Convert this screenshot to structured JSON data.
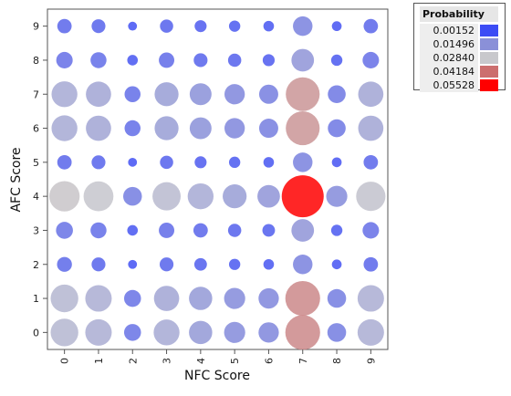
{
  "chart_data": {
    "type": "scatter",
    "xlabel": "NFC Score",
    "ylabel": "AFC Score",
    "x_ticks": [
      "0",
      "1",
      "2",
      "3",
      "4",
      "5",
      "6",
      "7",
      "8",
      "9"
    ],
    "y_ticks": [
      "0",
      "1",
      "2",
      "3",
      "4",
      "5",
      "6",
      "7",
      "8",
      "9"
    ],
    "xlim": [
      -0.5,
      9.5
    ],
    "ylim": [
      -0.5,
      9.5
    ],
    "grid": false,
    "legend_position": "top-right",
    "legend": {
      "title": "Probability",
      "entries": [
        {
          "label": "0.00152",
          "color": "#3c4cf5"
        },
        {
          "label": "0.01496",
          "color": "#8a90d8"
        },
        {
          "label": "0.02840",
          "color": "#c8c8cc"
        },
        {
          "label": "0.04184",
          "color": "#cc6e6e"
        },
        {
          "label": "0.05528",
          "color": "#ff0000"
        }
      ]
    },
    "color_scale": [
      0.00152,
      0.01496,
      0.0284,
      0.04184,
      0.05528
    ],
    "points": [
      {
        "x": 0,
        "y": 0,
        "p": 0.024
      },
      {
        "x": 1,
        "y": 0,
        "p": 0.022
      },
      {
        "x": 2,
        "y": 0,
        "p": 0.009
      },
      {
        "x": 3,
        "y": 0,
        "p": 0.021
      },
      {
        "x": 4,
        "y": 0,
        "p": 0.017
      },
      {
        "x": 5,
        "y": 0,
        "p": 0.014
      },
      {
        "x": 6,
        "y": 0,
        "p": 0.013
      },
      {
        "x": 7,
        "y": 0,
        "p": 0.038
      },
      {
        "x": 8,
        "y": 0,
        "p": 0.011
      },
      {
        "x": 9,
        "y": 0,
        "p": 0.022
      },
      {
        "x": 0,
        "y": 1,
        "p": 0.024
      },
      {
        "x": 1,
        "y": 1,
        "p": 0.022
      },
      {
        "x": 2,
        "y": 1,
        "p": 0.009
      },
      {
        "x": 3,
        "y": 1,
        "p": 0.02
      },
      {
        "x": 4,
        "y": 1,
        "p": 0.017
      },
      {
        "x": 5,
        "y": 1,
        "p": 0.014
      },
      {
        "x": 6,
        "y": 1,
        "p": 0.013
      },
      {
        "x": 7,
        "y": 1,
        "p": 0.038
      },
      {
        "x": 8,
        "y": 1,
        "p": 0.011
      },
      {
        "x": 9,
        "y": 1,
        "p": 0.022
      },
      {
        "x": 0,
        "y": 2,
        "p": 0.007
      },
      {
        "x": 1,
        "y": 2,
        "p": 0.006
      },
      {
        "x": 2,
        "y": 2,
        "p": 0.0025
      },
      {
        "x": 3,
        "y": 2,
        "p": 0.006
      },
      {
        "x": 4,
        "y": 2,
        "p": 0.005
      },
      {
        "x": 5,
        "y": 2,
        "p": 0.004
      },
      {
        "x": 6,
        "y": 2,
        "p": 0.0035
      },
      {
        "x": 7,
        "y": 2,
        "p": 0.012
      },
      {
        "x": 8,
        "y": 2,
        "p": 0.003
      },
      {
        "x": 9,
        "y": 2,
        "p": 0.0065
      },
      {
        "x": 0,
        "y": 3,
        "p": 0.009
      },
      {
        "x": 1,
        "y": 3,
        "p": 0.008
      },
      {
        "x": 2,
        "y": 3,
        "p": 0.0035
      },
      {
        "x": 3,
        "y": 3,
        "p": 0.0075
      },
      {
        "x": 4,
        "y": 3,
        "p": 0.0065
      },
      {
        "x": 5,
        "y": 3,
        "p": 0.0055
      },
      {
        "x": 6,
        "y": 3,
        "p": 0.005
      },
      {
        "x": 7,
        "y": 3,
        "p": 0.016
      },
      {
        "x": 8,
        "y": 3,
        "p": 0.004
      },
      {
        "x": 9,
        "y": 3,
        "p": 0.0085
      },
      {
        "x": 0,
        "y": 4,
        "p": 0.029
      },
      {
        "x": 1,
        "y": 4,
        "p": 0.028
      },
      {
        "x": 2,
        "y": 4,
        "p": 0.011
      },
      {
        "x": 3,
        "y": 4,
        "p": 0.025
      },
      {
        "x": 4,
        "y": 4,
        "p": 0.021
      },
      {
        "x": 5,
        "y": 4,
        "p": 0.018
      },
      {
        "x": 6,
        "y": 4,
        "p": 0.016
      },
      {
        "x": 7,
        "y": 4,
        "p": 0.0553
      },
      {
        "x": 8,
        "y": 4,
        "p": 0.014
      },
      {
        "x": 9,
        "y": 4,
        "p": 0.027
      },
      {
        "x": 0,
        "y": 5,
        "p": 0.0065
      },
      {
        "x": 1,
        "y": 5,
        "p": 0.006
      },
      {
        "x": 2,
        "y": 5,
        "p": 0.0025
      },
      {
        "x": 3,
        "y": 5,
        "p": 0.0055
      },
      {
        "x": 4,
        "y": 5,
        "p": 0.0045
      },
      {
        "x": 5,
        "y": 5,
        "p": 0.004
      },
      {
        "x": 6,
        "y": 5,
        "p": 0.0035
      },
      {
        "x": 7,
        "y": 5,
        "p": 0.012
      },
      {
        "x": 8,
        "y": 5,
        "p": 0.003
      },
      {
        "x": 9,
        "y": 5,
        "p": 0.0065
      },
      {
        "x": 0,
        "y": 6,
        "p": 0.021
      },
      {
        "x": 1,
        "y": 6,
        "p": 0.02
      },
      {
        "x": 2,
        "y": 6,
        "p": 0.008
      },
      {
        "x": 3,
        "y": 6,
        "p": 0.018
      },
      {
        "x": 4,
        "y": 6,
        "p": 0.015
      },
      {
        "x": 5,
        "y": 6,
        "p": 0.013
      },
      {
        "x": 6,
        "y": 6,
        "p": 0.0115
      },
      {
        "x": 7,
        "y": 6,
        "p": 0.036
      },
      {
        "x": 8,
        "y": 6,
        "p": 0.01
      },
      {
        "x": 9,
        "y": 6,
        "p": 0.02
      },
      {
        "x": 0,
        "y": 7,
        "p": 0.021
      },
      {
        "x": 1,
        "y": 7,
        "p": 0.02
      },
      {
        "x": 2,
        "y": 7,
        "p": 0.008
      },
      {
        "x": 3,
        "y": 7,
        "p": 0.018
      },
      {
        "x": 4,
        "y": 7,
        "p": 0.015
      },
      {
        "x": 5,
        "y": 7,
        "p": 0.013
      },
      {
        "x": 6,
        "y": 7,
        "p": 0.0115
      },
      {
        "x": 7,
        "y": 7,
        "p": 0.036
      },
      {
        "x": 8,
        "y": 7,
        "p": 0.01
      },
      {
        "x": 9,
        "y": 7,
        "p": 0.02
      },
      {
        "x": 0,
        "y": 8,
        "p": 0.0085
      },
      {
        "x": 1,
        "y": 8,
        "p": 0.008
      },
      {
        "x": 2,
        "y": 8,
        "p": 0.0035
      },
      {
        "x": 3,
        "y": 8,
        "p": 0.0075
      },
      {
        "x": 4,
        "y": 8,
        "p": 0.006
      },
      {
        "x": 5,
        "y": 8,
        "p": 0.0055
      },
      {
        "x": 6,
        "y": 8,
        "p": 0.0045
      },
      {
        "x": 7,
        "y": 8,
        "p": 0.016
      },
      {
        "x": 8,
        "y": 8,
        "p": 0.004
      },
      {
        "x": 9,
        "y": 8,
        "p": 0.0085
      },
      {
        "x": 0,
        "y": 9,
        "p": 0.0065
      },
      {
        "x": 1,
        "y": 9,
        "p": 0.006
      },
      {
        "x": 2,
        "y": 9,
        "p": 0.0025
      },
      {
        "x": 3,
        "y": 9,
        "p": 0.0055
      },
      {
        "x": 4,
        "y": 9,
        "p": 0.0045
      },
      {
        "x": 5,
        "y": 9,
        "p": 0.004
      },
      {
        "x": 6,
        "y": 9,
        "p": 0.0035
      },
      {
        "x": 7,
        "y": 9,
        "p": 0.012
      },
      {
        "x": 8,
        "y": 9,
        "p": 0.003
      },
      {
        "x": 9,
        "y": 9,
        "p": 0.0065
      }
    ]
  }
}
